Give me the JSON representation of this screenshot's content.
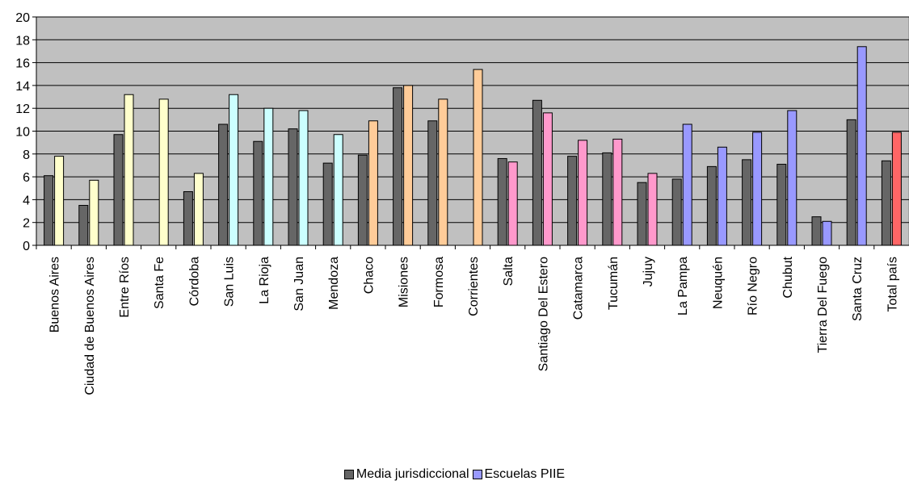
{
  "chart_data": {
    "type": "bar",
    "categories": [
      "Buenos Aires",
      "Ciudad de Buenos Aires",
      "Entre Ríos",
      "Santa Fe",
      "Córdoba",
      "San Luis",
      "La Rioja",
      "San Juan",
      "Mendoza",
      "Chaco",
      "Misiones",
      "Formosa",
      "Corrientes",
      "Salta",
      "Santiago Del Estero",
      "Catamarca",
      "Tucumán",
      "Jujuy",
      "La Pampa",
      "Neuquén",
      "Río Negro",
      "Chubut",
      "Tierra Del Fuego",
      "Santa Cruz",
      "Total país"
    ],
    "series": [
      {
        "name": "Media jurisdiccional",
        "color": "#666666",
        "values": [
          6.1,
          3.5,
          9.7,
          null,
          4.7,
          10.6,
          9.1,
          10.2,
          7.2,
          7.9,
          13.8,
          10.9,
          null,
          7.6,
          12.7,
          7.8,
          8.1,
          5.5,
          5.8,
          6.9,
          7.5,
          7.1,
          2.5,
          11.0,
          7.4
        ]
      },
      {
        "name": "Escuelas PIIE",
        "color": "#9999ff",
        "values": [
          7.8,
          5.7,
          13.2,
          12.8,
          6.3,
          13.2,
          12.0,
          11.8,
          9.7,
          10.9,
          14.0,
          12.8,
          15.4,
          7.3,
          11.6,
          9.2,
          9.3,
          6.3,
          10.6,
          8.6,
          9.9,
          11.8,
          2.1,
          17.4,
          9.9
        ]
      }
    ],
    "pIIE_colors_by_category": [
      "#ffffcc",
      "#ffffcc",
      "#ffffcc",
      "#ffffcc",
      "#ffffcc",
      "#ccffff",
      "#ccffff",
      "#ccffff",
      "#ccffff",
      "#ffcc99",
      "#ffcc99",
      "#ffcc99",
      "#ffcc99",
      "#ff99cc",
      "#ff99cc",
      "#ff99cc",
      "#ff99cc",
      "#ff99cc",
      "#9999ff",
      "#9999ff",
      "#9999ff",
      "#9999ff",
      "#9999ff",
      "#9999ff",
      "#ff6666"
    ],
    "plot_background": "#c0c0c0",
    "ylim": [
      0,
      20
    ],
    "yticks": [
      "0",
      "2",
      "4",
      "6",
      "8",
      "10",
      "12",
      "14",
      "16",
      "18",
      "20"
    ],
    "grid": true,
    "legend_position": "bottom",
    "title": "",
    "xlabel": "",
    "ylabel": ""
  },
  "legend": {
    "items": [
      {
        "label": "Media jurisdiccional",
        "color": "#666666"
      },
      {
        "label": "Escuelas PIIE",
        "color": "#9999ff"
      }
    ]
  }
}
